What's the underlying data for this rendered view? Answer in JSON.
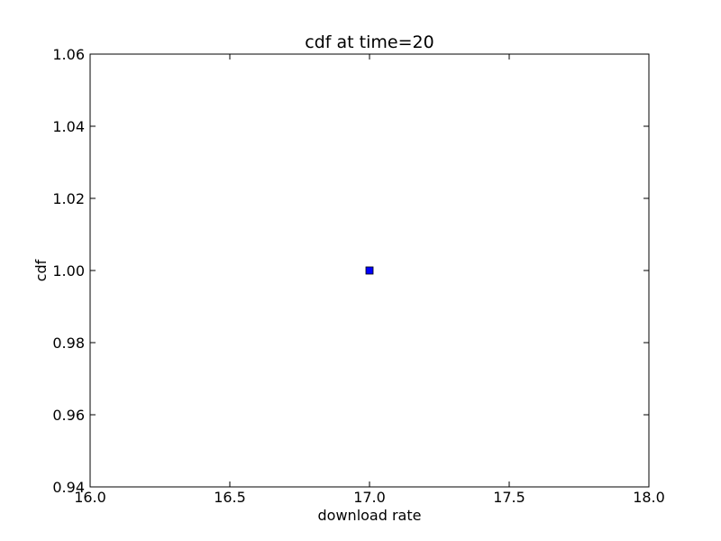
{
  "chart_data": {
    "type": "scatter",
    "title": "cdf at time=20",
    "xlabel": "download rate",
    "ylabel": "cdf",
    "xlim": [
      16.0,
      18.0
    ],
    "ylim": [
      0.94,
      1.06
    ],
    "x_ticks": [
      16.0,
      16.5,
      17.0,
      17.5,
      18.0
    ],
    "x_tick_labels": [
      "16.0",
      "16.5",
      "17.0",
      "17.5",
      "18.0"
    ],
    "y_ticks": [
      0.94,
      0.96,
      0.98,
      1.0,
      1.02,
      1.04,
      1.06
    ],
    "y_tick_labels": [
      "0.94",
      "0.96",
      "0.98",
      "1.00",
      "1.02",
      "1.04",
      "1.06"
    ],
    "grid": false,
    "marker": "square",
    "series": [
      {
        "color": "#0000ff",
        "points": [
          {
            "x": 17.0,
            "y": 1.0
          }
        ]
      }
    ]
  }
}
